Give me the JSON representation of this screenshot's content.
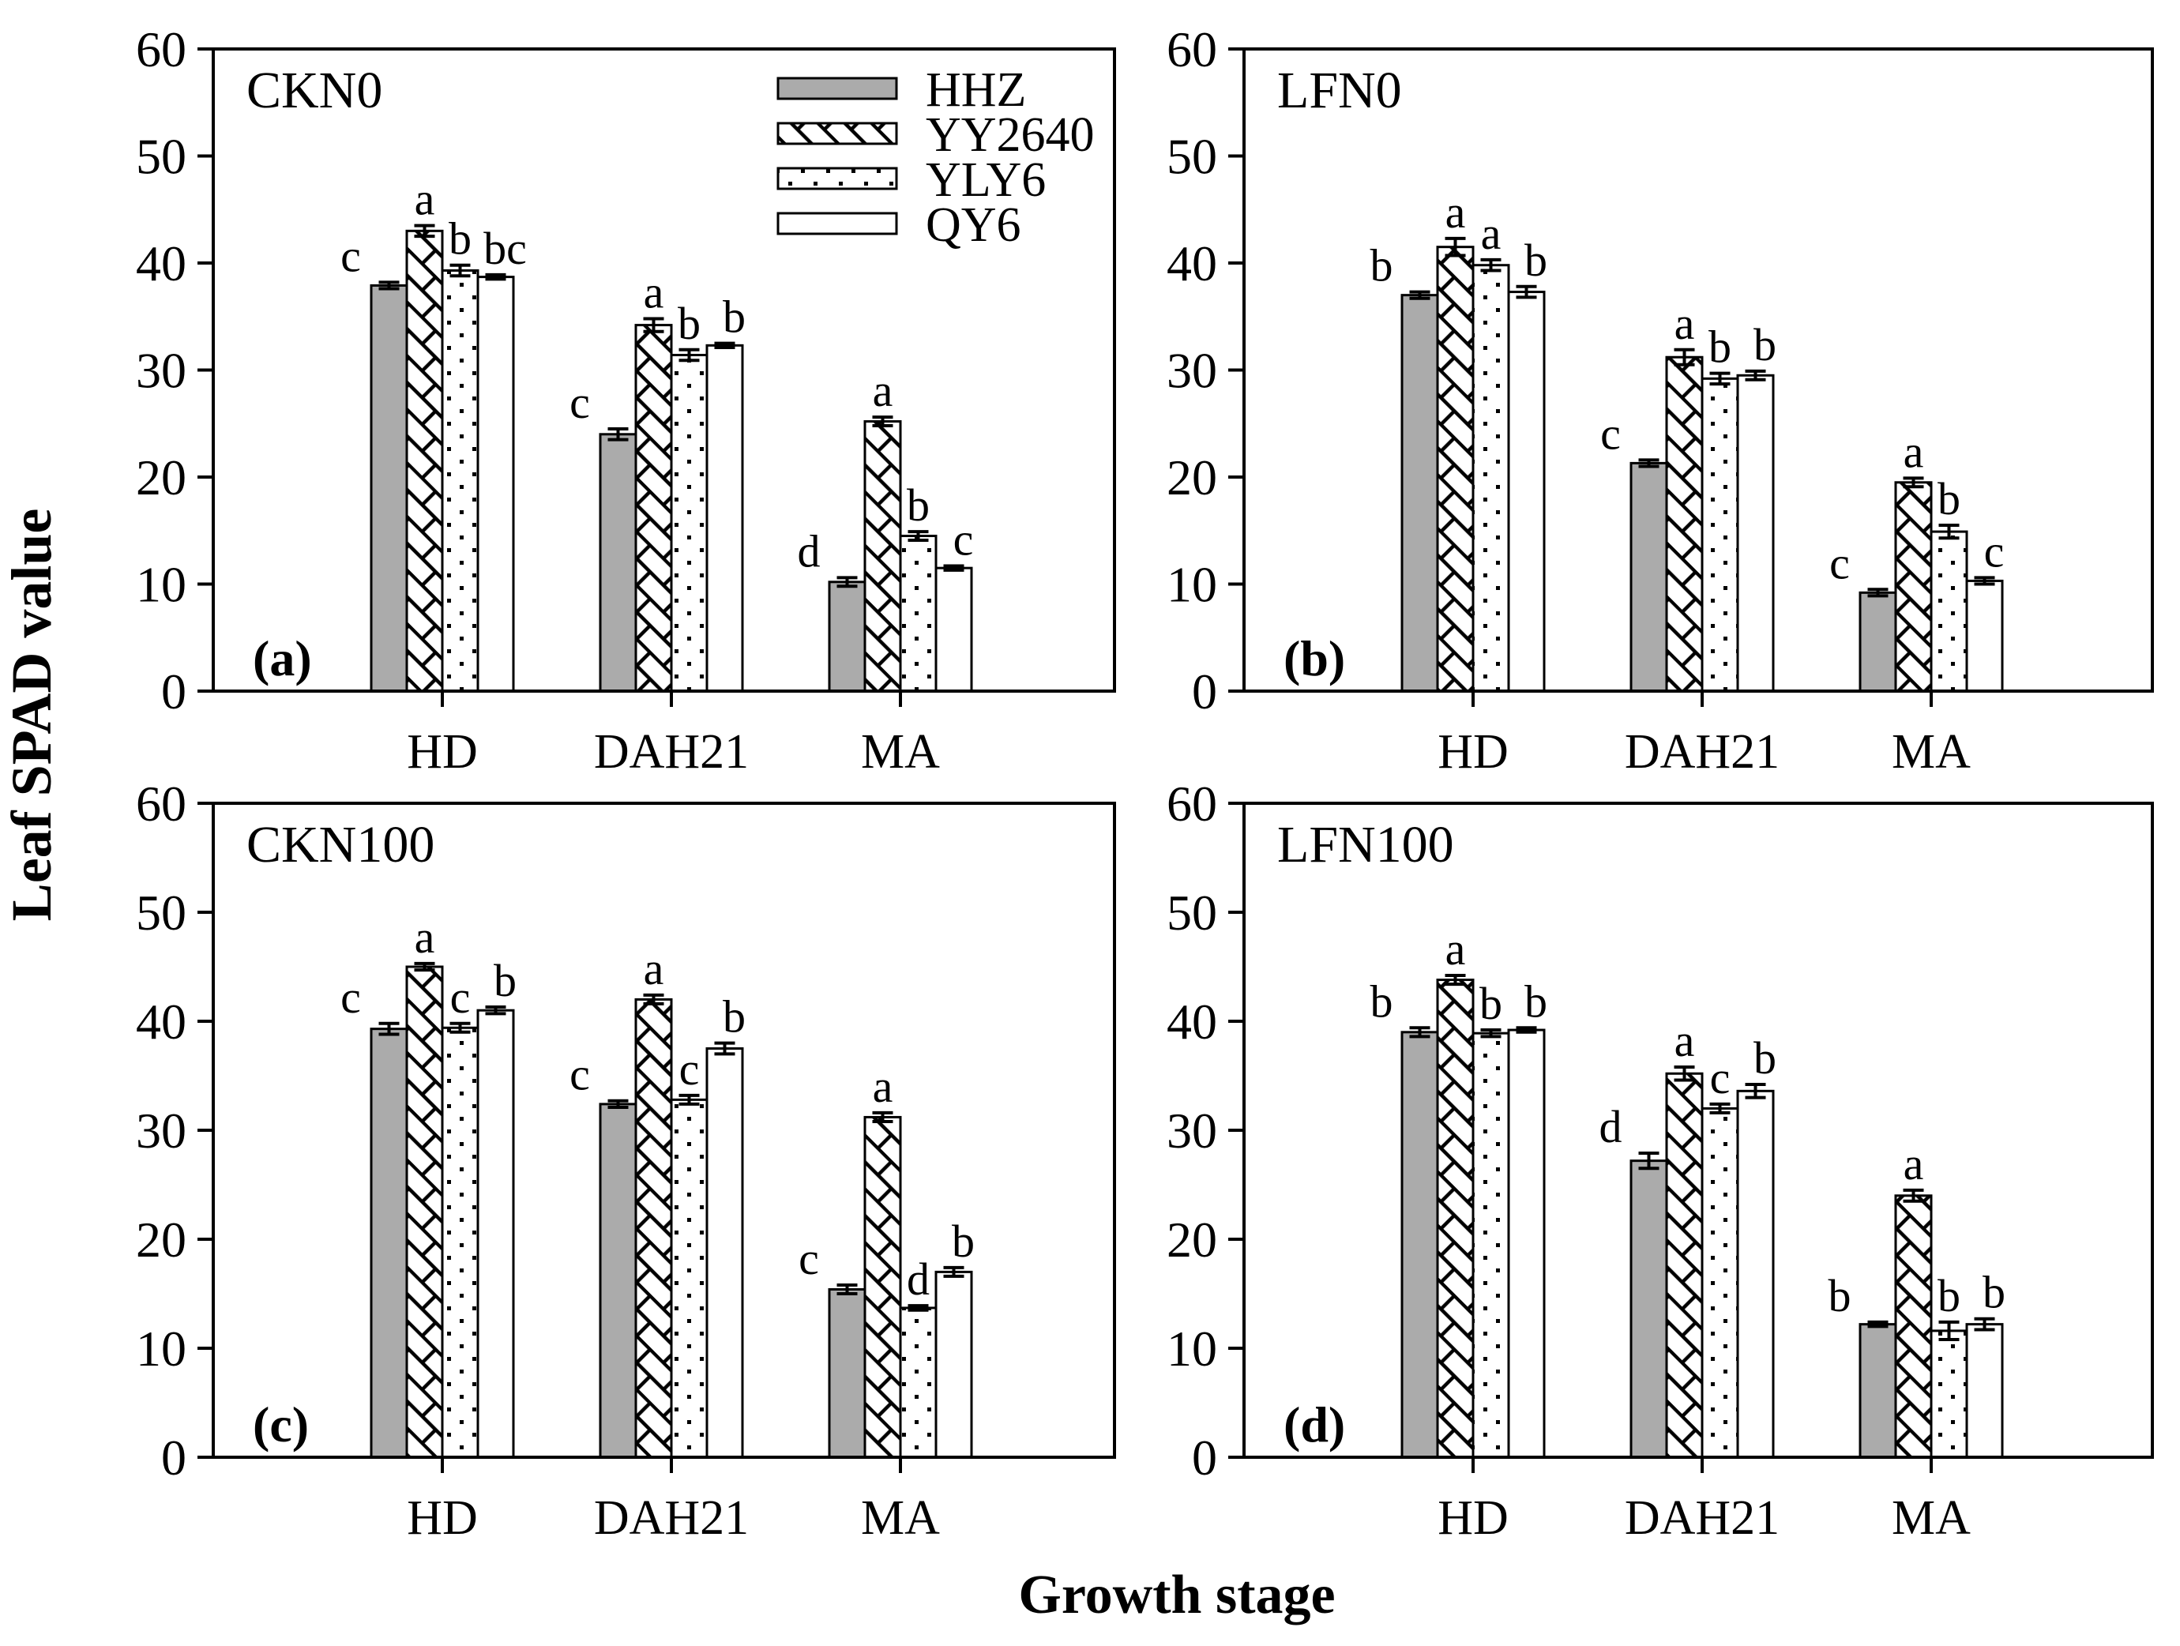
{
  "chart_data": {
    "type": "bar",
    "title": "",
    "xlabel": "Growth stage",
    "ylabel": "Leaf SPAD value",
    "categories": [
      "HD",
      "DAH21",
      "MA"
    ],
    "series_names": [
      "HHZ",
      "YY2640",
      "YLY6",
      "QY6"
    ],
    "ylim": [
      0,
      60
    ],
    "yticks": [
      0,
      10,
      20,
      30,
      40,
      50,
      60
    ],
    "grid": "off",
    "legend_position": "top-right-of-panel-a",
    "colors": {
      "gray_fill": "#ababab",
      "white_fill": "#ffffff",
      "ink": "#000000",
      "background": "#ffffff"
    },
    "legend": {
      "items": [
        {
          "label": "HHZ",
          "pattern": "solid-gray"
        },
        {
          "label": "YY2640",
          "pattern": "diagonal-hatch"
        },
        {
          "label": "YLY6",
          "pattern": "dots"
        },
        {
          "label": "QY6",
          "pattern": "plain-white"
        }
      ]
    },
    "panels": [
      {
        "panel_label": "(a)",
        "treatment": "CKN0",
        "series": [
          {
            "name": "HHZ",
            "values": [
              37.9,
              24.0,
              10.2
            ],
            "errors": [
              0.3,
              0.5,
              0.4
            ],
            "letters": [
              "c",
              "c",
              "d"
            ]
          },
          {
            "name": "YY2640",
            "values": [
              43.0,
              34.2,
              25.2
            ],
            "errors": [
              0.5,
              0.6,
              0.4
            ],
            "letters": [
              "a",
              "a",
              "a"
            ]
          },
          {
            "name": "YLY6",
            "values": [
              39.3,
              31.4,
              14.5
            ],
            "errors": [
              0.5,
              0.5,
              0.4
            ],
            "letters": [
              "b",
              "b",
              "b"
            ]
          },
          {
            "name": "QY6",
            "values": [
              38.7,
              32.3,
              11.5
            ],
            "errors": [
              0.2,
              0.2,
              0.2
            ],
            "letters": [
              "bc",
              "b",
              "c"
            ]
          }
        ]
      },
      {
        "panel_label": "(b)",
        "treatment": "LFN0",
        "series": [
          {
            "name": "HHZ",
            "values": [
              37.0,
              21.3,
              9.2
            ],
            "errors": [
              0.3,
              0.3,
              0.3
            ],
            "letters": [
              "b",
              "c",
              "c"
            ]
          },
          {
            "name": "YY2640",
            "values": [
              41.5,
              31.2,
              19.5
            ],
            "errors": [
              0.8,
              0.7,
              0.4
            ],
            "letters": [
              "a",
              "a",
              "a"
            ]
          },
          {
            "name": "YLY6",
            "values": [
              39.8,
              29.2,
              14.9
            ],
            "errors": [
              0.5,
              0.5,
              0.6
            ],
            "letters": [
              "a",
              "b",
              "b"
            ]
          },
          {
            "name": "QY6",
            "values": [
              37.3,
              29.5,
              10.3
            ],
            "errors": [
              0.5,
              0.4,
              0.3
            ],
            "letters": [
              "b",
              "b",
              "c"
            ]
          }
        ]
      },
      {
        "panel_label": "(c)",
        "treatment": "CKN100",
        "series": [
          {
            "name": "HHZ",
            "values": [
              39.3,
              32.4,
              15.4
            ],
            "errors": [
              0.5,
              0.3,
              0.4
            ],
            "letters": [
              "c",
              "c",
              "c"
            ]
          },
          {
            "name": "YY2640",
            "values": [
              45.0,
              42.0,
              31.2
            ],
            "errors": [
              0.3,
              0.4,
              0.4
            ],
            "letters": [
              "a",
              "a",
              "a"
            ]
          },
          {
            "name": "YLY6",
            "values": [
              39.4,
              32.8,
              13.7
            ],
            "errors": [
              0.4,
              0.4,
              0.2
            ],
            "letters": [
              "c",
              "c",
              "d"
            ]
          },
          {
            "name": "QY6",
            "values": [
              41.0,
              37.5,
              17.0
            ],
            "errors": [
              0.3,
              0.5,
              0.4
            ],
            "letters": [
              "b",
              "b",
              "b"
            ]
          }
        ]
      },
      {
        "panel_label": "(d)",
        "treatment": "LFN100",
        "series": [
          {
            "name": "HHZ",
            "values": [
              39.0,
              27.2,
              12.2
            ],
            "errors": [
              0.4,
              0.7,
              0.2
            ],
            "letters": [
              "b",
              "d",
              "b"
            ]
          },
          {
            "name": "YY2640",
            "values": [
              43.8,
              35.2,
              24.0
            ],
            "errors": [
              0.4,
              0.6,
              0.5
            ],
            "letters": [
              "a",
              "a",
              "a"
            ]
          },
          {
            "name": "YLY6",
            "values": [
              38.9,
              32.0,
              11.6
            ],
            "errors": [
              0.3,
              0.4,
              0.8
            ],
            "letters": [
              "b",
              "c",
              "b"
            ]
          },
          {
            "name": "QY6",
            "values": [
              39.2,
              33.6,
              12.2
            ],
            "errors": [
              0.2,
              0.6,
              0.5
            ],
            "letters": [
              "b",
              "b",
              "b"
            ]
          }
        ]
      }
    ]
  }
}
